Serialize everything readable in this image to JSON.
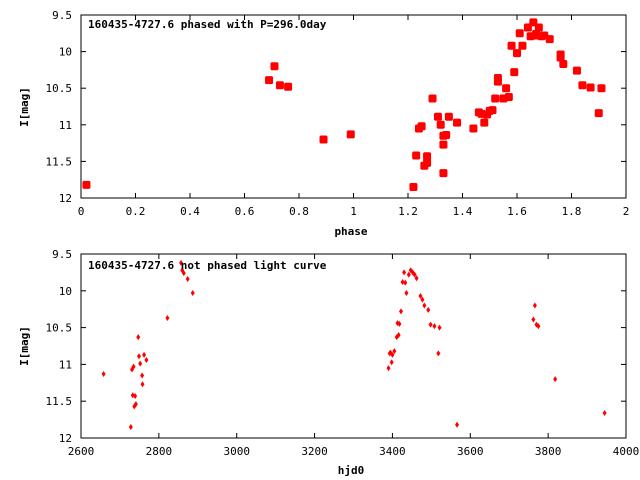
{
  "chart_data": [
    {
      "type": "scatter",
      "title": "160435-4727.6 phased with P=296.0day",
      "xlabel": "phase",
      "ylabel": "I[mag]",
      "xlim": [
        0,
        2
      ],
      "ylim": [
        9.5,
        12
      ],
      "y_inverted": true,
      "grid": false,
      "xticks": [
        0,
        0.2,
        0.4,
        0.6,
        0.8,
        1,
        1.2,
        1.4,
        1.6,
        1.8,
        2
      ],
      "yticks": [
        9.5,
        10,
        10.5,
        11,
        11.5,
        12
      ],
      "xtick_labels": [
        "0",
        "0.2",
        "0.4",
        "0.6",
        "0.8",
        "1",
        "1.2",
        "1.4",
        "1.6",
        "1.8",
        "2"
      ],
      "ytick_labels": [
        "9.5",
        "10",
        "10.5",
        "11",
        "11.5",
        "12"
      ],
      "marker": "star",
      "color": "#ff0000",
      "points": [
        [
          0.02,
          11.82
        ],
        [
          0.69,
          10.39
        ],
        [
          0.71,
          10.2
        ],
        [
          0.73,
          10.46
        ],
        [
          0.76,
          10.48
        ],
        [
          0.89,
          11.2
        ],
        [
          0.99,
          11.13
        ],
        [
          1.22,
          11.85
        ],
        [
          1.23,
          11.42
        ],
        [
          1.24,
          11.05
        ],
        [
          1.25,
          11.02
        ],
        [
          1.26,
          11.56
        ],
        [
          1.27,
          11.52
        ],
        [
          1.27,
          11.43
        ],
        [
          1.29,
          10.64
        ],
        [
          1.31,
          10.89
        ],
        [
          1.32,
          11.0
        ],
        [
          1.33,
          11.15
        ],
        [
          1.33,
          11.27
        ],
        [
          1.33,
          11.66
        ],
        [
          1.34,
          11.14
        ],
        [
          1.35,
          10.89
        ],
        [
          1.38,
          10.97
        ],
        [
          1.44,
          11.05
        ],
        [
          1.46,
          10.83
        ],
        [
          1.47,
          10.85
        ],
        [
          1.48,
          10.97
        ],
        [
          1.49,
          10.86
        ],
        [
          1.5,
          10.81
        ],
        [
          1.51,
          10.8
        ],
        [
          1.52,
          10.64
        ],
        [
          1.53,
          10.36
        ],
        [
          1.53,
          10.41
        ],
        [
          1.55,
          10.64
        ],
        [
          1.56,
          10.5
        ],
        [
          1.57,
          10.62
        ],
        [
          1.58,
          9.92
        ],
        [
          1.59,
          10.28
        ],
        [
          1.6,
          10.02
        ],
        [
          1.61,
          9.75
        ],
        [
          1.62,
          9.92
        ],
        [
          1.64,
          9.67
        ],
        [
          1.65,
          9.79
        ],
        [
          1.66,
          9.6
        ],
        [
          1.67,
          9.78
        ],
        [
          1.67,
          9.76
        ],
        [
          1.68,
          9.67
        ],
        [
          1.69,
          9.79
        ],
        [
          1.7,
          9.78
        ],
        [
          1.72,
          9.83
        ],
        [
          1.76,
          10.04
        ],
        [
          1.76,
          10.08
        ],
        [
          1.77,
          10.17
        ],
        [
          1.82,
          10.26
        ],
        [
          1.84,
          10.46
        ],
        [
          1.87,
          10.49
        ],
        [
          1.9,
          10.84
        ],
        [
          1.91,
          10.5
        ]
      ]
    },
    {
      "type": "scatter",
      "title": "160435-4727.6 not phased light curve",
      "xlabel": "hjd0",
      "ylabel": "I[mag]",
      "xlim": [
        2600,
        4000
      ],
      "ylim": [
        9.5,
        12
      ],
      "y_inverted": true,
      "grid": false,
      "xticks": [
        2600,
        2800,
        3000,
        3200,
        3400,
        3600,
        3800,
        4000
      ],
      "yticks": [
        9.5,
        10,
        10.5,
        11,
        11.5,
        12
      ],
      "xtick_labels": [
        "2600",
        "2800",
        "3000",
        "3200",
        "3400",
        "3600",
        "3800",
        "4000"
      ],
      "ytick_labels": [
        "9.5",
        "10",
        "10.5",
        "11",
        "11.5",
        "12"
      ],
      "marker": "diamond",
      "color": "#ff0000",
      "points": [
        [
          2658,
          11.13
        ],
        [
          2728,
          11.85
        ],
        [
          2731,
          11.07
        ],
        [
          2733,
          11.42
        ],
        [
          2735,
          11.03
        ],
        [
          2737,
          11.57
        ],
        [
          2739,
          11.43
        ],
        [
          2741,
          11.54
        ],
        [
          2747,
          10.63
        ],
        [
          2749,
          10.89
        ],
        [
          2752,
          10.99
        ],
        [
          2757,
          11.15
        ],
        [
          2758,
          11.27
        ],
        [
          2762,
          10.87
        ],
        [
          2768,
          10.94
        ],
        [
          2822,
          10.37
        ],
        [
          2857,
          9.62
        ],
        [
          2860,
          9.72
        ],
        [
          2864,
          9.76
        ],
        [
          2874,
          9.84
        ],
        [
          2887,
          10.03
        ],
        [
          3390,
          11.05
        ],
        [
          3393,
          10.85
        ],
        [
          3395,
          10.84
        ],
        [
          3398,
          10.97
        ],
        [
          3400,
          10.87
        ],
        [
          3405,
          10.82
        ],
        [
          3411,
          10.63
        ],
        [
          3413,
          10.44
        ],
        [
          3416,
          10.6
        ],
        [
          3418,
          10.45
        ],
        [
          3422,
          10.28
        ],
        [
          3426,
          9.88
        ],
        [
          3430,
          9.75
        ],
        [
          3433,
          9.89
        ],
        [
          3436,
          10.03
        ],
        [
          3442,
          9.78
        ],
        [
          3447,
          9.72
        ],
        [
          3452,
          9.75
        ],
        [
          3457,
          9.78
        ],
        [
          3462,
          9.83
        ],
        [
          3472,
          10.07
        ],
        [
          3477,
          10.12
        ],
        [
          3482,
          10.2
        ],
        [
          3492,
          10.26
        ],
        [
          3498,
          10.46
        ],
        [
          3508,
          10.48
        ],
        [
          3518,
          10.85
        ],
        [
          3521,
          10.5
        ],
        [
          3566,
          11.82
        ],
        [
          3762,
          10.39
        ],
        [
          3766,
          10.2
        ],
        [
          3770,
          10.46
        ],
        [
          3775,
          10.48
        ],
        [
          3818,
          11.2
        ],
        [
          3945,
          11.66
        ]
      ]
    }
  ]
}
